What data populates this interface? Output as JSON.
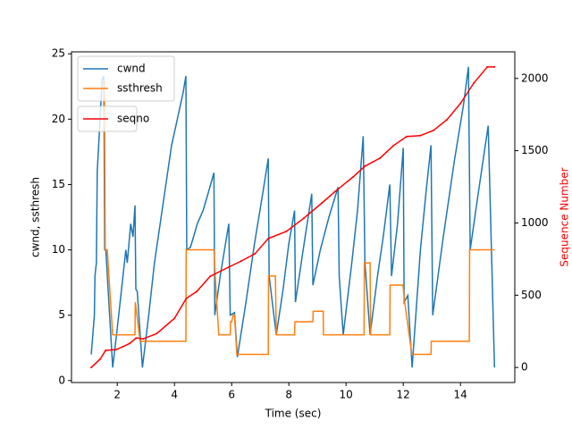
{
  "chart_data": {
    "type": "line",
    "xlabel": "Time (sec)",
    "ylabel": "cwnd, ssthresh",
    "y2label": "Sequence Number",
    "y2label_color": "#ff0000",
    "xlim": [
      0.4,
      15.9
    ],
    "xticks": [
      2,
      4,
      6,
      8,
      10,
      12,
      14
    ],
    "ylim": [
      -0.15,
      25.15
    ],
    "yticks": [
      0,
      5,
      10,
      15,
      20,
      25
    ],
    "y2lim": [
      -104,
      2184
    ],
    "y2ticks": [
      0,
      500,
      1000,
      1500,
      2000
    ],
    "series": [
      {
        "name": "cwnd",
        "color": "#1f77b4",
        "x": [
          1.09,
          1.2,
          1.22,
          1.27,
          1.3,
          1.4,
          1.47,
          1.53,
          1.56,
          1.6,
          1.84,
          2.0,
          2.2,
          2.3,
          2.35,
          2.47,
          2.55,
          2.62,
          2.65,
          2.7,
          2.88,
          3.1,
          3.3,
          3.5,
          3.7,
          3.9,
          4.1,
          4.3,
          4.4,
          4.43,
          4.56,
          4.8,
          5.0,
          5.2,
          5.38,
          5.41,
          5.6,
          5.9,
          5.95,
          6.1,
          6.2,
          6.5,
          6.8,
          7.1,
          7.28,
          7.31,
          7.56,
          7.8,
          8.0,
          8.2,
          8.23,
          8.5,
          8.8,
          8.84,
          9.1,
          9.4,
          9.72,
          9.76,
          9.9,
          10.2,
          10.4,
          10.6,
          10.66,
          10.84,
          11.1,
          11.3,
          11.53,
          11.59,
          11.8,
          12.0,
          12.03,
          12.16,
          12.31,
          12.6,
          12.8,
          12.97,
          13.03,
          13.4,
          13.8,
          14.1,
          14.28,
          14.34,
          14.6,
          14.97,
          15.19
        ],
        "values": [
          2,
          5,
          8,
          9,
          16,
          20,
          23,
          23.3,
          10,
          10,
          1,
          4,
          8,
          10,
          9,
          12,
          11,
          13.4,
          7,
          6.8,
          1,
          5,
          9,
          12,
          15,
          18,
          20,
          22,
          23.3,
          10,
          10.2,
          12,
          13,
          14.5,
          15.9,
          5,
          8,
          12,
          5,
          5.2,
          1.8,
          6,
          10.5,
          14.5,
          17,
          8,
          3.5,
          7,
          10.5,
          13,
          6,
          10,
          14.3,
          7.3,
          10,
          12.5,
          14.8,
          8,
          3.5,
          9,
          13,
          18.7,
          9,
          3.5,
          8,
          11,
          15,
          8,
          12,
          17.8,
          6,
          6.5,
          1,
          10,
          14.5,
          18,
          5,
          11,
          17,
          21,
          24,
          10,
          14,
          19.5,
          1
        ]
      },
      {
        "name": "ssthresh",
        "color": "#ff7f0e",
        "x": [
          1.55,
          1.58,
          1.65,
          1.84,
          2.62,
          2.63,
          2.8,
          4.4,
          4.41,
          5.38,
          5.45,
          5.55,
          5.95,
          5.96,
          6.0,
          6.05,
          6.1,
          6.18,
          7.28,
          7.29,
          7.53,
          7.56,
          8.2,
          8.21,
          8.84,
          8.85,
          9.2,
          9.21,
          10.63,
          10.64,
          10.84,
          10.86,
          11.53,
          11.54,
          11.99,
          12.05,
          12.3,
          12.97,
          12.98,
          14.31,
          14.32,
          15.19
        ],
        "values": [
          23,
          10,
          10,
          3.5,
          3.5,
          6,
          3,
          3,
          10,
          10,
          7,
          3.5,
          3.5,
          4.5,
          4.5,
          5,
          5,
          2,
          2,
          8,
          8,
          3.5,
          3.5,
          4.5,
          4.5,
          5.3,
          5.3,
          3.5,
          3.5,
          9,
          9,
          3.5,
          3.5,
          7.3,
          7.3,
          6,
          2,
          2,
          3,
          3,
          10,
          10
        ]
      },
      {
        "name": "seqno",
        "color": "#ff0000",
        "axis": "y2",
        "x": [
          1.09,
          1.41,
          1.59,
          1.97,
          2.44,
          2.66,
          2.91,
          3.38,
          4.0,
          4.41,
          4.78,
          5.25,
          5.88,
          6.34,
          6.81,
          7.28,
          7.91,
          8.53,
          9.16,
          9.63,
          10.25,
          10.66,
          11.19,
          11.66,
          12.12,
          12.59,
          13.06,
          13.53,
          14.0,
          14.47,
          14.94,
          15.19
        ],
        "values": [
          0,
          60,
          118,
          124,
          167,
          204,
          198,
          235,
          340,
          477,
          526,
          631,
          693,
          737,
          786,
          892,
          941,
          1034,
          1139,
          1220,
          1319,
          1393,
          1449,
          1536,
          1598,
          1604,
          1641,
          1715,
          1827,
          1969,
          2080,
          2080
        ]
      }
    ]
  }
}
